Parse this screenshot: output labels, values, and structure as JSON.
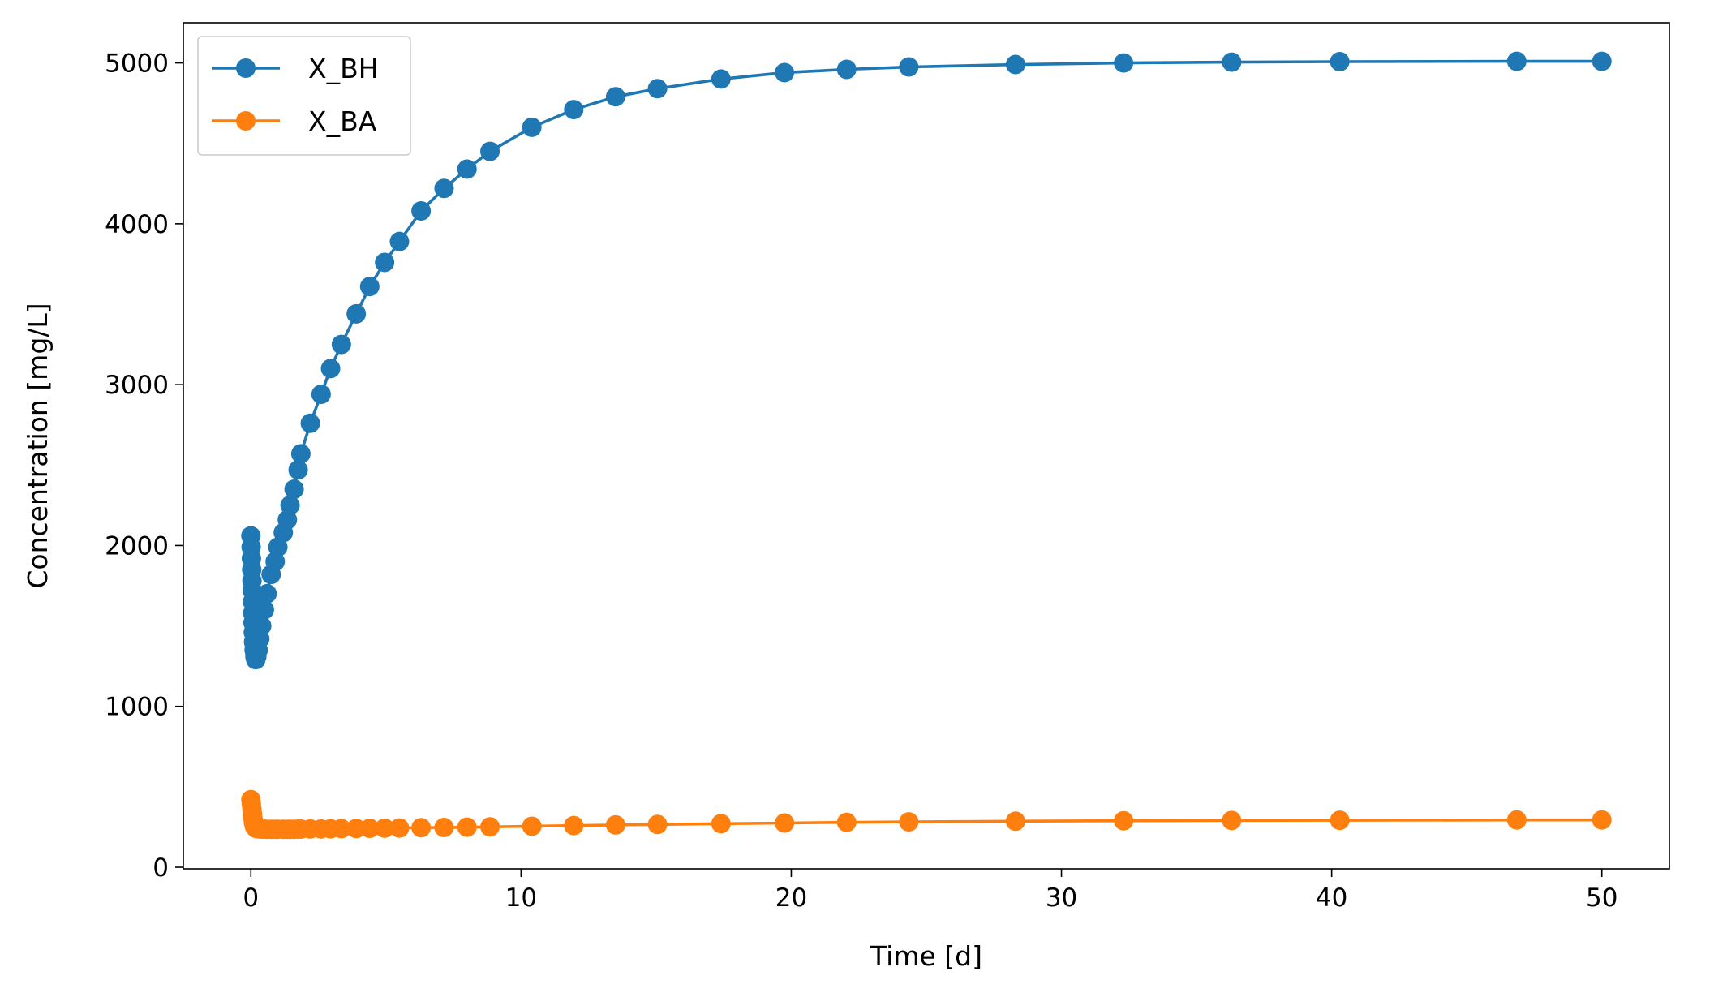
{
  "chart_data": {
    "type": "line",
    "xlabel": "Time [d]",
    "ylabel": "Concentration [mg/L]",
    "xlim": [
      -2.5,
      52.5
    ],
    "ylim": [
      -10,
      5250
    ],
    "xticks": [
      0,
      10,
      20,
      30,
      40,
      50
    ],
    "yticks": [
      0,
      1000,
      2000,
      3000,
      4000,
      5000
    ],
    "grid": false,
    "legend": "top-left",
    "series": [
      {
        "name": "X_BH",
        "color": "#1f77b4",
        "marker": "circle",
        "points": [
          [
            0.0,
            2060
          ],
          [
            0.01,
            1990
          ],
          [
            0.02,
            1920
          ],
          [
            0.03,
            1850
          ],
          [
            0.04,
            1780
          ],
          [
            0.05,
            1720
          ],
          [
            0.06,
            1650
          ],
          [
            0.07,
            1580
          ],
          [
            0.08,
            1520
          ],
          [
            0.09,
            1460
          ],
          [
            0.1,
            1400
          ],
          [
            0.12,
            1350
          ],
          [
            0.15,
            1310
          ],
          [
            0.18,
            1290
          ],
          [
            0.22,
            1310
          ],
          [
            0.27,
            1350
          ],
          [
            0.33,
            1420
          ],
          [
            0.4,
            1500
          ],
          [
            0.5,
            1600
          ],
          [
            0.6,
            1700
          ],
          [
            0.75,
            1820
          ],
          [
            0.9,
            1900
          ],
          [
            1.0,
            1990
          ],
          [
            1.2,
            2080
          ],
          [
            1.35,
            2160
          ],
          [
            1.45,
            2250
          ],
          [
            1.6,
            2350
          ],
          [
            1.75,
            2470
          ],
          [
            1.85,
            2570
          ],
          [
            2.2,
            2760
          ],
          [
            2.6,
            2940
          ],
          [
            2.95,
            3100
          ],
          [
            3.35,
            3250
          ],
          [
            3.9,
            3440
          ],
          [
            4.4,
            3610
          ],
          [
            4.95,
            3760
          ],
          [
            5.5,
            3890
          ],
          [
            6.3,
            4080
          ],
          [
            7.15,
            4220
          ],
          [
            8.0,
            4340
          ],
          [
            8.85,
            4450
          ],
          [
            10.4,
            4600
          ],
          [
            11.95,
            4710
          ],
          [
            13.5,
            4790
          ],
          [
            15.05,
            4840
          ],
          [
            17.4,
            4900
          ],
          [
            19.75,
            4940
          ],
          [
            22.05,
            4960
          ],
          [
            24.35,
            4975
          ],
          [
            28.3,
            4990
          ],
          [
            32.3,
            5000
          ],
          [
            36.3,
            5005
          ],
          [
            40.3,
            5008
          ],
          [
            46.85,
            5010
          ],
          [
            50.0,
            5010
          ]
        ]
      },
      {
        "name": "X_BA",
        "color": "#ff7f0e",
        "marker": "circle",
        "points": [
          [
            0.0,
            420
          ],
          [
            0.02,
            390
          ],
          [
            0.04,
            360
          ],
          [
            0.06,
            330
          ],
          [
            0.08,
            300
          ],
          [
            0.1,
            275
          ],
          [
            0.13,
            255
          ],
          [
            0.17,
            245
          ],
          [
            0.22,
            240
          ],
          [
            0.3,
            238
          ],
          [
            0.4,
            237
          ],
          [
            0.5,
            237
          ],
          [
            0.6,
            236
          ],
          [
            0.75,
            236
          ],
          [
            0.9,
            236
          ],
          [
            1.0,
            236
          ],
          [
            1.2,
            236
          ],
          [
            1.35,
            236
          ],
          [
            1.45,
            236
          ],
          [
            1.6,
            236
          ],
          [
            1.75,
            237
          ],
          [
            1.85,
            237
          ],
          [
            2.2,
            238
          ],
          [
            2.6,
            238
          ],
          [
            2.95,
            239
          ],
          [
            3.35,
            240
          ],
          [
            3.9,
            241
          ],
          [
            4.4,
            242
          ],
          [
            4.95,
            243
          ],
          [
            5.5,
            244
          ],
          [
            6.3,
            246
          ],
          [
            7.15,
            247
          ],
          [
            8.0,
            249
          ],
          [
            8.85,
            251
          ],
          [
            10.4,
            255
          ],
          [
            11.95,
            259
          ],
          [
            13.5,
            263
          ],
          [
            15.05,
            266
          ],
          [
            17.4,
            271
          ],
          [
            19.75,
            275
          ],
          [
            22.05,
            279
          ],
          [
            24.35,
            282
          ],
          [
            28.3,
            286
          ],
          [
            32.3,
            289
          ],
          [
            36.3,
            291
          ],
          [
            40.3,
            292
          ],
          [
            46.85,
            294
          ],
          [
            50.0,
            294
          ]
        ]
      }
    ]
  }
}
